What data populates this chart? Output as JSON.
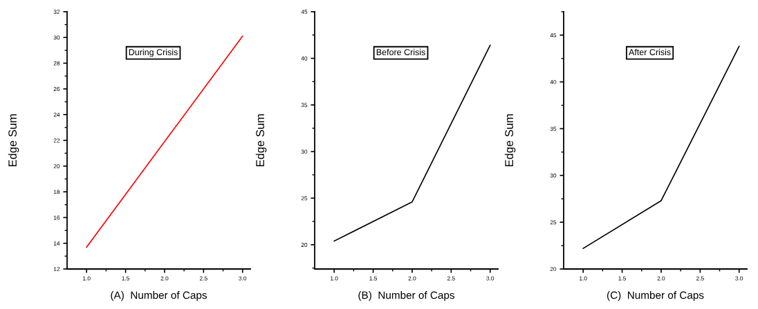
{
  "chart_data": [
    {
      "type": "line",
      "xlabel": "(A)  Number of Caps",
      "ylabel": "Edge Sum",
      "annotations": [
        "During Crisis"
      ],
      "x": [
        1.0,
        2.0,
        3.0
      ],
      "series": [
        {
          "color": "#ff0000",
          "values": [
            13.7,
            21.9,
            30.1
          ]
        }
      ],
      "xlim": [
        0.75,
        3.1
      ],
      "xticks": [
        {
          "value": 1,
          "label": "1.0"
        },
        {
          "value": 1.5,
          "label": "1.5"
        },
        {
          "value": 2,
          "label": "2.0"
        },
        {
          "value": 2.5,
          "label": "2.5"
        },
        {
          "value": 3,
          "label": "3.0"
        }
      ],
      "ylim": [
        12,
        32
      ],
      "yticks": [
        12,
        14,
        16,
        18,
        20,
        22,
        24,
        26,
        28,
        30,
        32
      ],
      "grid": false,
      "legend": false
    },
    {
      "type": "line",
      "xlabel": "(B)  Number of Caps",
      "ylabel": "Edge Sum",
      "annotations": [
        "Before Crisis"
      ],
      "x": [
        1.0,
        2.0,
        3.0
      ],
      "series": [
        {
          "color": "#000000",
          "values": [
            20.4,
            24.6,
            41.4
          ]
        }
      ],
      "xlim": [
        0.75,
        3.1
      ],
      "xticks": [
        {
          "value": 1,
          "label": "1.0"
        },
        {
          "value": 1.5,
          "label": "1.5"
        },
        {
          "value": 2,
          "label": "2.0"
        },
        {
          "value": 2.5,
          "label": "2.5"
        },
        {
          "value": 3,
          "label": "3.0"
        }
      ],
      "ylim": [
        17.4,
        45
      ],
      "yticks": [
        20,
        25,
        30,
        35,
        40,
        45
      ],
      "grid": false,
      "legend": false
    },
    {
      "type": "line",
      "xlabel": "(C)  Number of Caps",
      "ylabel": "Edge Sum",
      "annotations": [
        "After Crisis"
      ],
      "x": [
        1.0,
        2.0,
        3.0
      ],
      "series": [
        {
          "color": "#000000",
          "values": [
            22.2,
            27.3,
            43.8
          ]
        }
      ],
      "xlim": [
        0.75,
        3.1
      ],
      "xticks": [
        {
          "value": 1,
          "label": "1.0"
        },
        {
          "value": 1.5,
          "label": "1.5"
        },
        {
          "value": 2,
          "label": "2.0"
        },
        {
          "value": 2.5,
          "label": "2.5"
        },
        {
          "value": 3,
          "label": "3.0"
        }
      ],
      "ylim": [
        20,
        47.5
      ],
      "yticks": [
        20,
        25,
        30,
        35,
        40,
        45
      ],
      "grid": false,
      "legend": false
    }
  ]
}
